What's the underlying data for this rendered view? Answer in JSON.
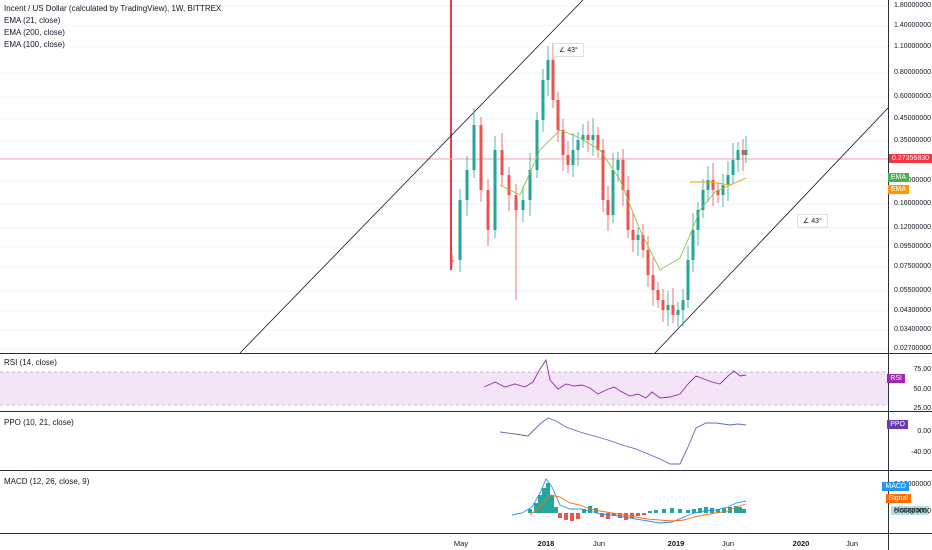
{
  "main_chart": {
    "legend": [
      "Incent / US Dollar (calculated by TradingView), 1W, BITTREX",
      "EMA (21, close)",
      "EMA (200, close)",
      "EMA (100, close)"
    ],
    "price_label": "0.27356830",
    "price_label_color": "#f23645",
    "y_ticks": [
      "1.80000000",
      "1.40000000",
      "1.10000000",
      "0.80000000",
      "0.60000000",
      "0.45000000",
      "0.35000000",
      "0.21000000",
      "0.16000000",
      "0.12000000",
      "0.09500000",
      "0.07500000",
      "0.05500000",
      "0.04300000",
      "0.03400000",
      "0.02700000"
    ],
    "ema_tag": "EMA",
    "ema_tag_colors": [
      "#4caf50",
      "#ff9800"
    ],
    "angle_labels": [
      "43°",
      "43°"
    ],
    "angle_icon": "angle-icon",
    "up_color": "#26a69a",
    "down_color": "#ef5350"
  },
  "rsi": {
    "legend": "RSI (14, close)",
    "y_ticks": [
      "75.00",
      "50.00",
      "25.00"
    ],
    "tag": "RSI",
    "tag_color": "#9c27b0",
    "band_color": "#f3e5f5"
  },
  "ppo": {
    "legend": "PPO (10, 21, close)",
    "y_ticks": [
      "0.00",
      "-40.00"
    ],
    "tag": "PPO",
    "tag_color": "#673ab7"
  },
  "macd": {
    "legend": "MACD (12, 26, close, 9)",
    "y_ticks": [
      "0.10000000",
      "0.00000000"
    ],
    "tags": [
      {
        "label": "MACD",
        "color": "#2196f3"
      },
      {
        "label": "Signal",
        "color": "#ff6d00"
      },
      {
        "label": "Histogram",
        "color": "#b2dfdb"
      }
    ]
  },
  "time_axis": {
    "labels": [
      {
        "text": "May",
        "bold": false
      },
      {
        "text": "2018",
        "bold": true
      },
      {
        "text": "Jun",
        "bold": false
      },
      {
        "text": "2019",
        "bold": true
      },
      {
        "text": "Jun",
        "bold": false
      },
      {
        "text": "2020",
        "bold": true
      },
      {
        "text": "Jun",
        "bold": false
      }
    ]
  }
}
